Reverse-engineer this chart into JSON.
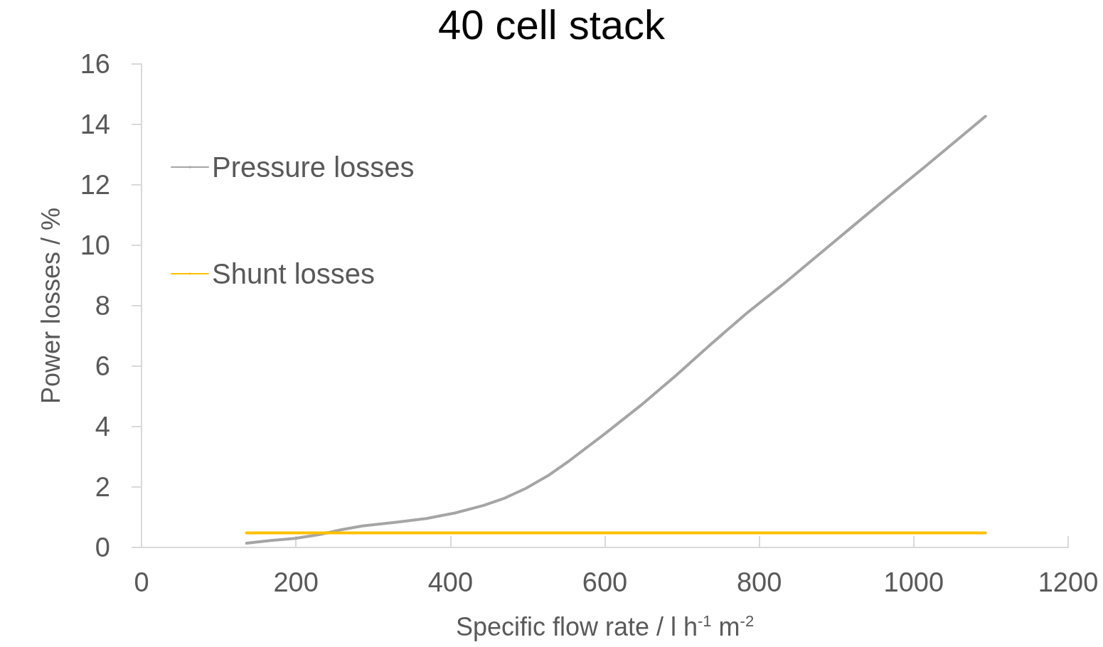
{
  "chart_data": {
    "type": "line",
    "title": "40 cell stack",
    "xlabel": "Specific flow rate / l h$^{-1}$ m$^{-2}$",
    "ylabel": "Power losses / %",
    "xlim": [
      0,
      1200
    ],
    "xticks": [
      0,
      200,
      400,
      600,
      800,
      1000,
      1200
    ],
    "ylim": [
      0,
      16
    ],
    "yticks": [
      0,
      2,
      4,
      6,
      8,
      10,
      12,
      14,
      16
    ],
    "legend": "left",
    "series": [
      {
        "name": "Pressure losses",
        "color": "#a5a5a5",
        "x": [
          136,
          167,
          199,
          231,
          259,
          286,
          332,
          369,
          406,
          443,
          471,
          498,
          526,
          554,
          600,
          646,
          692,
          738,
          784,
          830,
          876,
          922,
          968,
          1014,
          1093
        ],
        "values": [
          0.14,
          0.23,
          0.3,
          0.43,
          0.59,
          0.71,
          0.84,
          0.96,
          1.14,
          1.39,
          1.64,
          1.96,
          2.37,
          2.87,
          3.76,
          4.69,
          5.69,
          6.74,
          7.76,
          8.69,
          9.67,
          10.65,
          11.63,
          12.59,
          14.27
        ]
      },
      {
        "name": "Shunt losses",
        "color": "#ffc000",
        "x": [
          136,
          1093
        ],
        "values": [
          0.48,
          0.48
        ]
      }
    ]
  }
}
